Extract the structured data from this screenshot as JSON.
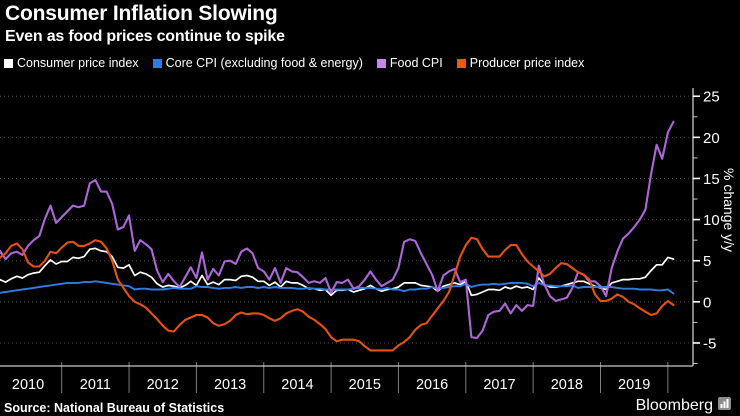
{
  "header": {
    "title": "Consumer Inflation Slowing",
    "subtitle": "Even as food prices continue to spike"
  },
  "source": "Source: National Bureau of Statistics",
  "brand": {
    "name": "Bloomberg",
    "icon": "bar-chart-icon",
    "icon_color": "#8c8c8c"
  },
  "colors": {
    "background": "#000000",
    "gridline": "#4a4a4a",
    "axis": "#c8c8c8",
    "year_divider": "#7d7d7d",
    "tick_label": "#ffffff"
  },
  "chart_data": {
    "type": "line",
    "frequency": "monthly",
    "x_start": "2010-01",
    "x_end": "2020-02",
    "x_tick_labels": [
      "2010",
      "2011",
      "2012",
      "2013",
      "2014",
      "2015",
      "2016",
      "2017",
      "2018",
      "2019"
    ],
    "ylabel": "% change y/y",
    "y_ticks": [
      25,
      20,
      15,
      10,
      5,
      0,
      -5
    ],
    "y_minor_ticks": [
      22.5,
      17.5,
      12.5,
      7.5,
      2.5,
      -2.5,
      -7.5
    ],
    "ylim": [
      -7.8,
      26
    ],
    "grid": "horizontal-dotted",
    "legend_position": "top",
    "series": [
      {
        "name": "Consumer price index",
        "color": "#ffffff",
        "swatch": "#ffffff",
        "values": [
          1.5,
          2.7,
          2.4,
          2.8,
          3.1,
          2.9,
          3.3,
          3.5,
          3.6,
          4.4,
          5.1,
          4.6,
          4.9,
          4.9,
          5.4,
          5.3,
          5.5,
          6.4,
          6.5,
          6.2,
          6.1,
          5.5,
          4.2,
          4.1,
          4.5,
          3.2,
          3.6,
          3.4,
          3.0,
          2.2,
          1.8,
          2.0,
          1.9,
          1.7,
          2.0,
          2.5,
          2.0,
          3.2,
          2.1,
          2.4,
          2.1,
          2.7,
          2.7,
          2.6,
          3.1,
          3.2,
          3.0,
          2.5,
          2.5,
          2.0,
          2.4,
          1.8,
          2.5,
          2.3,
          2.3,
          2.0,
          1.6,
          1.6,
          1.4,
          1.5,
          0.8,
          1.4,
          1.4,
          1.5,
          1.2,
          1.4,
          1.6,
          2.0,
          1.6,
          1.3,
          1.5,
          1.6,
          1.8,
          2.3,
          2.3,
          2.3,
          2.0,
          1.9,
          1.8,
          1.3,
          1.9,
          2.1,
          2.3,
          2.1,
          2.5,
          0.8,
          0.9,
          1.2,
          1.5,
          1.5,
          1.4,
          1.8,
          1.6,
          1.9,
          1.7,
          1.8,
          1.5,
          2.9,
          2.1,
          1.8,
          1.8,
          1.9,
          2.1,
          2.3,
          2.5,
          2.5,
          2.2,
          1.9,
          1.7,
          1.5,
          2.3,
          2.5,
          2.7,
          2.7,
          2.8,
          2.8,
          3.0,
          3.8,
          4.5,
          4.5,
          5.4,
          5.2
        ]
      },
      {
        "name": "Core CPI (excluding food & energy)",
        "color": "#2d7de1",
        "swatch": "#2d7de1",
        "values": [
          1.0,
          1.1,
          1.2,
          1.3,
          1.4,
          1.5,
          1.6,
          1.7,
          1.8,
          1.9,
          2.0,
          2.1,
          2.2,
          2.3,
          2.3,
          2.3,
          2.4,
          2.4,
          2.5,
          2.4,
          2.3,
          2.2,
          2.1,
          2.0,
          1.9,
          1.5,
          1.6,
          1.6,
          1.5,
          1.5,
          1.5,
          1.6,
          1.7,
          1.6,
          1.6,
          1.6,
          1.9,
          1.8,
          1.8,
          1.7,
          1.6,
          1.7,
          1.7,
          1.8,
          1.7,
          1.8,
          1.8,
          1.7,
          1.8,
          1.7,
          1.8,
          1.7,
          1.7,
          1.7,
          1.6,
          1.6,
          1.7,
          1.6,
          1.6,
          1.5,
          1.5,
          1.5,
          1.5,
          1.5,
          1.6,
          1.7,
          1.7,
          1.7,
          1.6,
          1.5,
          1.7,
          1.5,
          1.5,
          1.3,
          1.5,
          1.5,
          1.6,
          1.6,
          1.8,
          1.6,
          1.7,
          1.8,
          1.9,
          1.9,
          2.2,
          1.8,
          2.0,
          2.1,
          2.1,
          2.2,
          2.1,
          2.2,
          2.3,
          2.3,
          2.3,
          2.2,
          1.9,
          2.3,
          2.0,
          2.0,
          1.9,
          1.9,
          1.9,
          2.0,
          1.7,
          1.8,
          1.8,
          1.8,
          1.8,
          1.8,
          1.8,
          1.7,
          1.6,
          1.6,
          1.6,
          1.5,
          1.5,
          1.5,
          1.4,
          1.4,
          1.5,
          1.0
        ]
      },
      {
        "name": "Food CPI",
        "color": "#ad66d9",
        "swatch": "#c885ec",
        "values": [
          3.7,
          6.2,
          5.2,
          5.9,
          6.1,
          5.7,
          6.8,
          7.5,
          8.0,
          10.1,
          11.7,
          9.6,
          10.3,
          11.0,
          11.7,
          11.5,
          11.7,
          14.4,
          14.8,
          13.4,
          13.4,
          11.9,
          8.8,
          9.1,
          10.5,
          6.2,
          7.5,
          7.0,
          6.4,
          3.8,
          2.4,
          3.4,
          2.5,
          1.8,
          3.0,
          4.2,
          2.9,
          6.0,
          2.7,
          4.0,
          3.2,
          4.9,
          5.0,
          4.6,
          6.1,
          6.5,
          5.9,
          4.1,
          3.7,
          2.7,
          4.1,
          2.3,
          4.1,
          3.7,
          3.6,
          3.0,
          2.3,
          2.5,
          2.3,
          2.9,
          1.1,
          2.4,
          2.3,
          2.7,
          1.6,
          1.9,
          2.7,
          3.7,
          2.7,
          1.9,
          2.3,
          2.7,
          4.1,
          7.3,
          7.6,
          7.4,
          5.9,
          4.6,
          3.3,
          1.3,
          3.2,
          3.7,
          4.0,
          2.4,
          2.7,
          -4.3,
          -4.4,
          -3.5,
          -1.6,
          -1.2,
          -1.1,
          -0.2,
          -1.4,
          -0.4,
          -1.1,
          -0.4,
          -0.5,
          4.4,
          2.1,
          0.7,
          0.1,
          0.3,
          0.5,
          1.7,
          3.6,
          3.3,
          2.5,
          2.5,
          1.9,
          0.7,
          4.1,
          6.1,
          7.7,
          8.3,
          9.1,
          10.0,
          11.2,
          15.5,
          19.1,
          17.4,
          20.6,
          21.9
        ]
      },
      {
        "name": "Producer price index",
        "color": "#e8500f",
        "swatch": "#f2570d",
        "values": [
          4.3,
          5.4,
          5.9,
          6.8,
          7.1,
          6.4,
          4.8,
          4.3,
          4.3,
          5.0,
          6.1,
          5.9,
          6.6,
          7.2,
          7.3,
          6.8,
          6.8,
          7.1,
          7.5,
          7.3,
          6.5,
          5.0,
          2.7,
          1.7,
          0.7,
          0.0,
          -0.3,
          -0.7,
          -1.4,
          -2.1,
          -2.9,
          -3.5,
          -3.6,
          -2.8,
          -2.2,
          -1.9,
          -1.6,
          -1.6,
          -1.9,
          -2.6,
          -2.9,
          -2.7,
          -2.3,
          -1.6,
          -1.3,
          -1.5,
          -1.4,
          -1.4,
          -1.6,
          -2.0,
          -2.3,
          -2.0,
          -1.4,
          -1.1,
          -0.9,
          -1.2,
          -1.8,
          -2.2,
          -2.7,
          -3.3,
          -4.3,
          -4.8,
          -4.6,
          -4.6,
          -4.6,
          -4.8,
          -5.4,
          -5.9,
          -5.9,
          -5.9,
          -5.9,
          -5.9,
          -5.3,
          -4.9,
          -4.3,
          -3.4,
          -2.8,
          -2.6,
          -1.7,
          -0.8,
          0.1,
          1.2,
          3.3,
          5.5,
          6.9,
          7.8,
          7.6,
          6.4,
          5.5,
          5.5,
          5.5,
          6.3,
          6.9,
          6.9,
          5.8,
          4.9,
          4.3,
          3.7,
          3.1,
          3.4,
          4.1,
          4.7,
          4.6,
          4.1,
          3.6,
          3.3,
          2.7,
          0.9,
          0.1,
          0.1,
          0.4,
          0.9,
          0.6,
          0.0,
          -0.3,
          -0.8,
          -1.2,
          -1.6,
          -1.4,
          -0.5,
          0.1,
          -0.4
        ]
      }
    ]
  }
}
